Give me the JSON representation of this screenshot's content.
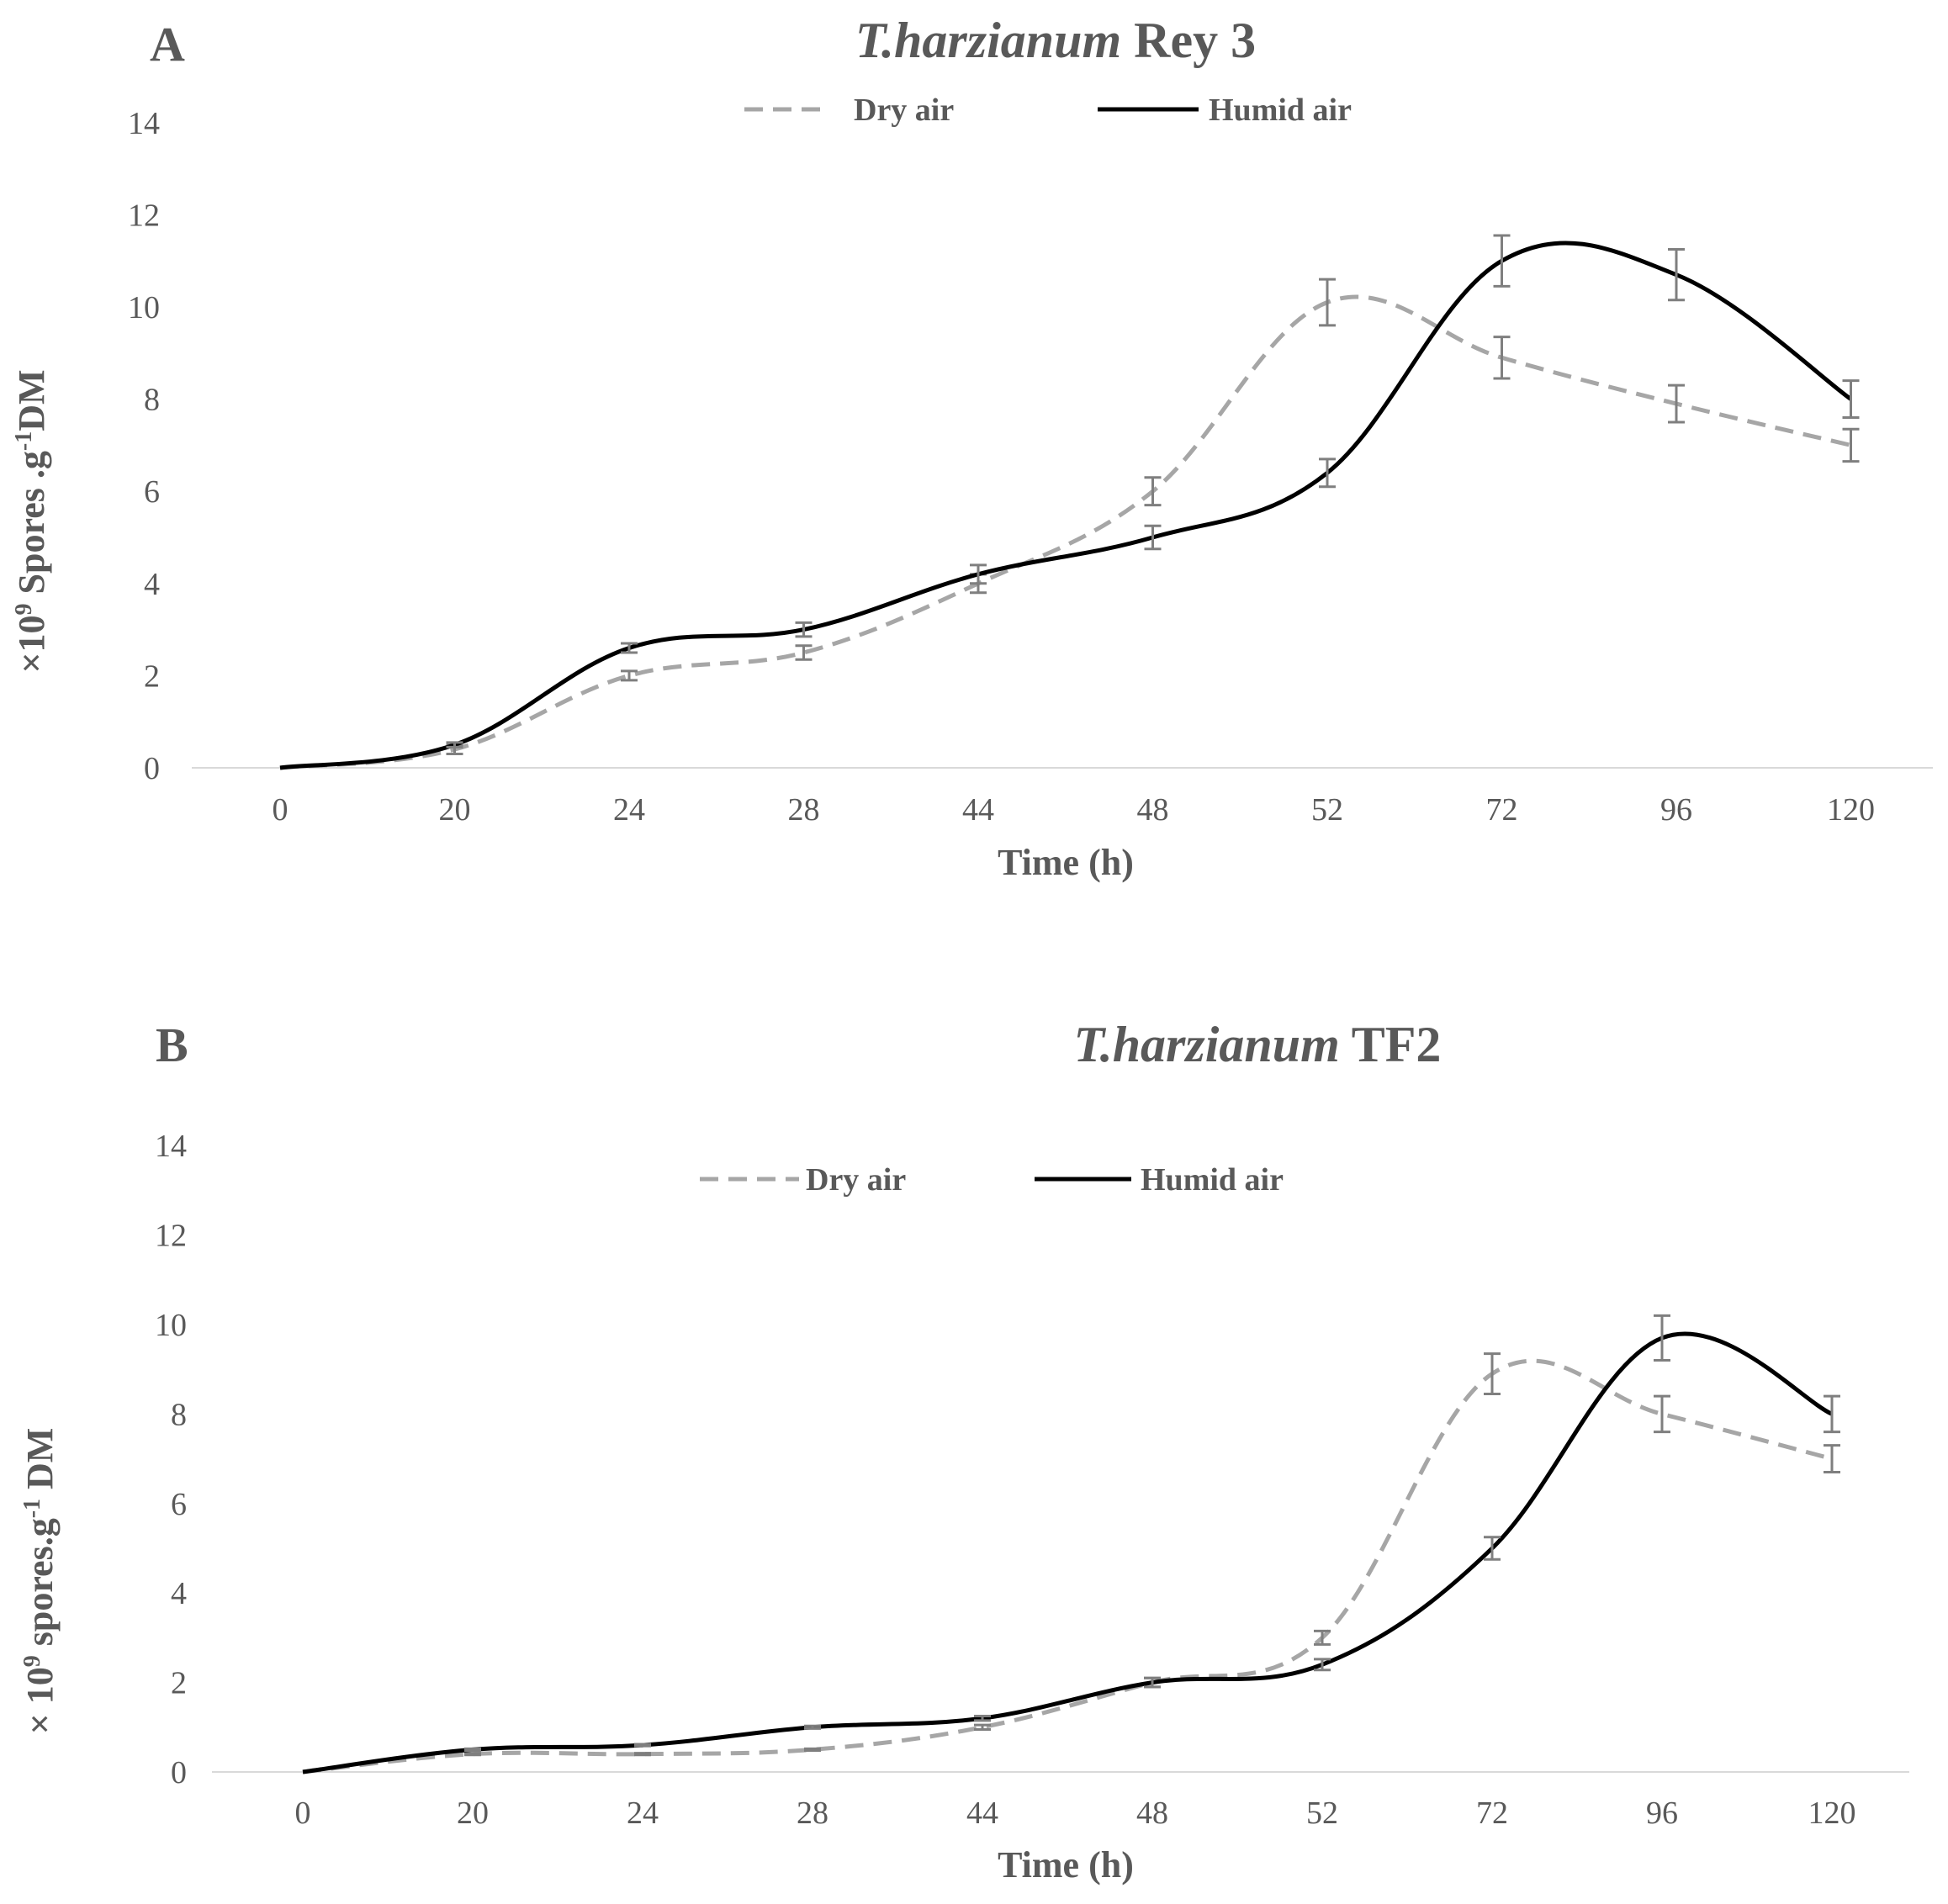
{
  "chart_data": [
    {
      "type": "line",
      "panel_label": "A",
      "title_italic": "T.harzianum",
      "title_rest": " Rey 3",
      "xlabel": "Time (h)",
      "ylabel_prefix": "×10",
      "ylabel_sup1": "9",
      "ylabel_mid": " Spores .g",
      "ylabel_sup2": "-1",
      "ylabel_suffix": "DM",
      "categories": [
        "0",
        "20",
        "24",
        "28",
        "44",
        "48",
        "52",
        "72",
        "96",
        "120"
      ],
      "ylim": [
        0,
        14
      ],
      "yticks": [
        "0",
        "2",
        "4",
        "6",
        "8",
        "10",
        "12",
        "14"
      ],
      "legend": "top-center",
      "series": [
        {
          "name": "Dry air",
          "style": "dashed",
          "color": "#a6a6a6",
          "values": [
            0,
            0.4,
            2.0,
            2.5,
            4.0,
            6.0,
            10.1,
            8.9,
            7.9,
            7.0
          ],
          "errors": [
            0,
            0.1,
            0.1,
            0.15,
            0.2,
            0.3,
            0.5,
            0.45,
            0.4,
            0.35
          ]
        },
        {
          "name": "Humid air",
          "style": "solid",
          "color": "#000000",
          "values": [
            0,
            0.5,
            2.6,
            3.0,
            4.2,
            5.0,
            6.4,
            11.0,
            10.7,
            8.0
          ],
          "errors": [
            0,
            0.05,
            0.1,
            0.15,
            0.2,
            0.25,
            0.3,
            0.55,
            0.55,
            0.4
          ]
        }
      ]
    },
    {
      "type": "line",
      "panel_label": "B",
      "title_italic": "T.harzianum",
      "title_rest": " TF2",
      "xlabel": "Time (h)",
      "ylabel_prefix": "× 10",
      "ylabel_sup1": "9",
      "ylabel_mid": " spores.g",
      "ylabel_sup2": "-1",
      "ylabel_suffix": " DM",
      "categories": [
        "0",
        "20",
        "24",
        "28",
        "44",
        "48",
        "52",
        "72",
        "96",
        "120"
      ],
      "ylim": [
        0,
        14
      ],
      "yticks": [
        "0",
        "2",
        "4",
        "6",
        "8",
        "10",
        "12",
        "14"
      ],
      "legend": "top-center",
      "series": [
        {
          "name": "Dry air",
          "style": "dashed",
          "color": "#a6a6a6",
          "values": [
            0,
            0.4,
            0.4,
            0.5,
            1.0,
            2.0,
            3.0,
            8.9,
            8.0,
            7.0
          ],
          "errors": [
            0,
            0.02,
            0.02,
            0.02,
            0.05,
            0.1,
            0.15,
            0.45,
            0.4,
            0.3
          ]
        },
        {
          "name": "Humid air",
          "style": "solid",
          "color": "#000000",
          "values": [
            0,
            0.5,
            0.6,
            1.0,
            1.2,
            2.0,
            2.4,
            5.0,
            9.7,
            8.0
          ],
          "errors": [
            0,
            0.02,
            0.02,
            0.03,
            0.05,
            0.1,
            0.12,
            0.25,
            0.5,
            0.4
          ]
        }
      ]
    }
  ]
}
